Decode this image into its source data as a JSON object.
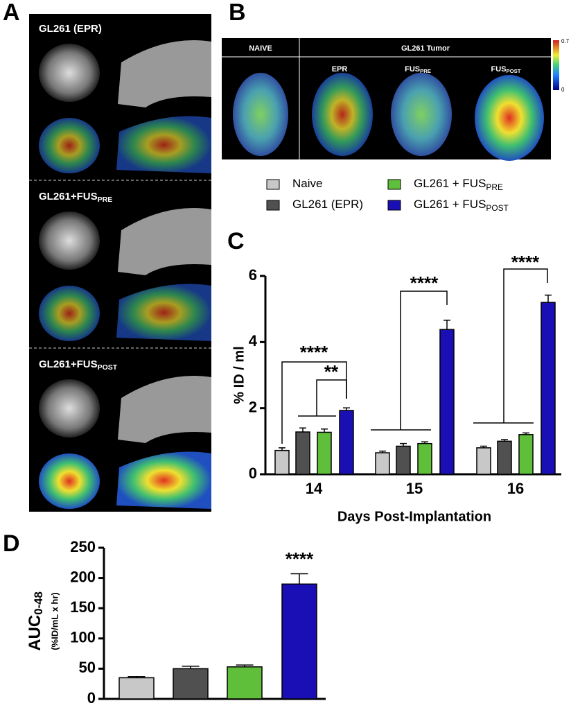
{
  "panel_labels": [
    "A",
    "B",
    "C",
    "D"
  ],
  "panel_a": {
    "groups": [
      {
        "text": "GL261 (EPR)"
      },
      {
        "text": "GL261+FUS",
        "sub": "PRE"
      },
      {
        "text": "GL261+FUS",
        "sub": "POST"
      }
    ]
  },
  "panel_b": {
    "header": [
      "NAIVE",
      "GL261 Tumor"
    ],
    "columns": [
      {
        "text": "EPR"
      },
      {
        "text": "FUS",
        "sub": "PRE"
      },
      {
        "text": "FUS",
        "sub": "POST"
      }
    ],
    "colorbar": {
      "max": "0.7",
      "min": "0"
    }
  },
  "chart_data": [
    {
      "type": "bar",
      "ylabel": "% ID / ml",
      "xlabel": "Days Post-Implantation",
      "categories": [
        "14",
        "15",
        "16"
      ],
      "series": [
        {
          "name": "Naive",
          "color": "#c8c8c8",
          "values": [
            0.72,
            0.65,
            0.8
          ],
          "errors": [
            0.08,
            0.05,
            0.05
          ]
        },
        {
          "name": "GL261 (EPR)",
          "color": "#505050",
          "values": [
            1.28,
            0.85,
            1.0
          ],
          "errors": [
            0.12,
            0.08,
            0.05
          ]
        },
        {
          "name": "GL261 + FUS",
          "name_sub": "PRE",
          "color": "#5fbf3a",
          "values": [
            1.27,
            0.93,
            1.2
          ],
          "errors": [
            0.1,
            0.05,
            0.05
          ]
        },
        {
          "name": "GL261 + FUS",
          "name_sub": "POST",
          "color": "#1a0fb4",
          "values": [
            1.93,
            4.38,
            5.2
          ],
          "errors": [
            0.08,
            0.28,
            0.22
          ]
        }
      ],
      "ylim": [
        0,
        6
      ],
      "yticks": [
        0,
        2,
        4,
        6
      ],
      "annotations": [
        "****",
        "**",
        "****",
        "****"
      ]
    },
    {
      "type": "bar",
      "ylabel": "AUC",
      "ylabel_sub": "0-48",
      "ylabel2": "(%ID/mL x hr)",
      "categories": [
        null,
        null,
        null,
        null
      ],
      "values": [
        35,
        50,
        53,
        190
      ],
      "errors": [
        2,
        4,
        3,
        17
      ],
      "colors": [
        "#c8c8c8",
        "#505050",
        "#5fbf3a",
        "#1a0fb4"
      ],
      "ylim": [
        0,
        250
      ],
      "yticks": [
        0,
        50,
        100,
        150,
        200,
        250
      ],
      "annotations": [
        "****"
      ]
    }
  ]
}
